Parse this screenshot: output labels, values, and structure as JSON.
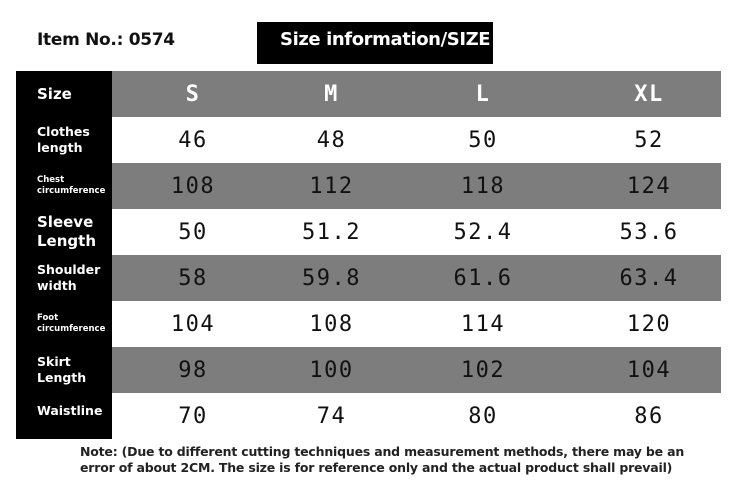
{
  "item_no": "Item No.: 0574",
  "title": "Size information/SIZE",
  "table": {
    "corner": "Size",
    "sizes": [
      "S",
      "M",
      "L",
      "XL"
    ],
    "rows": [
      {
        "label_lines": [
          "Clothes",
          "length"
        ],
        "values": [
          "46",
          "48",
          "50",
          "52"
        ]
      },
      {
        "label_lines": [
          "Chest",
          "circumference"
        ],
        "values": [
          "108",
          "112",
          "118",
          "124"
        ]
      },
      {
        "label_lines": [
          "Sleeve",
          "Length"
        ],
        "values": [
          "50",
          "51.2",
          "52.4",
          "53.6"
        ]
      },
      {
        "label_lines": [
          "Shoulder",
          "width"
        ],
        "values": [
          "58",
          "59.8",
          "61.6",
          "63.4"
        ]
      },
      {
        "label_lines": [
          "Foot",
          "circumference"
        ],
        "values": [
          "104",
          "108",
          "114",
          "120"
        ]
      },
      {
        "label_lines": [
          "Skirt",
          "Length"
        ],
        "values": [
          "98",
          "100",
          "102",
          "104"
        ]
      },
      {
        "label_lines": [
          "Waistline"
        ],
        "values": [
          "70",
          "74",
          "80",
          "86"
        ]
      }
    ]
  },
  "note_lines": [
    "Note: (Due to different cutting techniques and measurement methods, there may be an",
    "error of about 2CM. The size is for reference only and the actual product shall prevail)"
  ],
  "colors": {
    "header_gray": "#7d7d7d",
    "label_black": "#000000"
  }
}
